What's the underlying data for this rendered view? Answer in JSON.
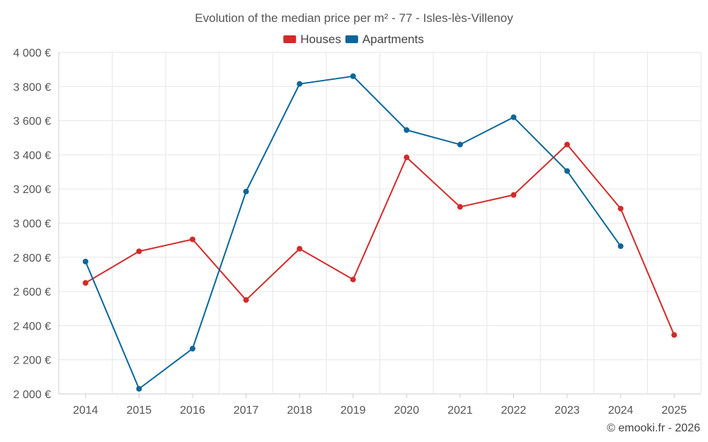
{
  "chart_data": {
    "type": "line",
    "title": "Evolution of the median price per m² - 77 - Isles-lès-Villenoy",
    "categories": [
      "2014",
      "2015",
      "2016",
      "2017",
      "2018",
      "2019",
      "2020",
      "2021",
      "2022",
      "2023",
      "2024",
      "2025"
    ],
    "series": [
      {
        "name": "Houses",
        "color": "#d32a2a",
        "values": [
          2650,
          2835,
          2905,
          2550,
          2850,
          2670,
          3385,
          3095,
          3165,
          3460,
          3085,
          2345
        ]
      },
      {
        "name": "Apartments",
        "color": "#0a6699",
        "values": [
          2775,
          2030,
          2265,
          3185,
          3815,
          3860,
          3545,
          3460,
          3620,
          3305,
          2865,
          null
        ]
      }
    ],
    "ylim": [
      2000,
      4000
    ],
    "yticks": [
      2000,
      2200,
      2400,
      2600,
      2800,
      3000,
      3200,
      3400,
      3600,
      3800,
      4000
    ],
    "ytick_labels": [
      "2 000 €",
      "2 200 €",
      "2 400 €",
      "2 600 €",
      "2 800 €",
      "3 000 €",
      "3 200 €",
      "3 400 €",
      "3 600 €",
      "3 800 €",
      "4 000 €"
    ],
    "xlabel": "",
    "ylabel": "",
    "grid": true,
    "legend_position": "top-center"
  },
  "credit": "© emooki.fr - 2026"
}
